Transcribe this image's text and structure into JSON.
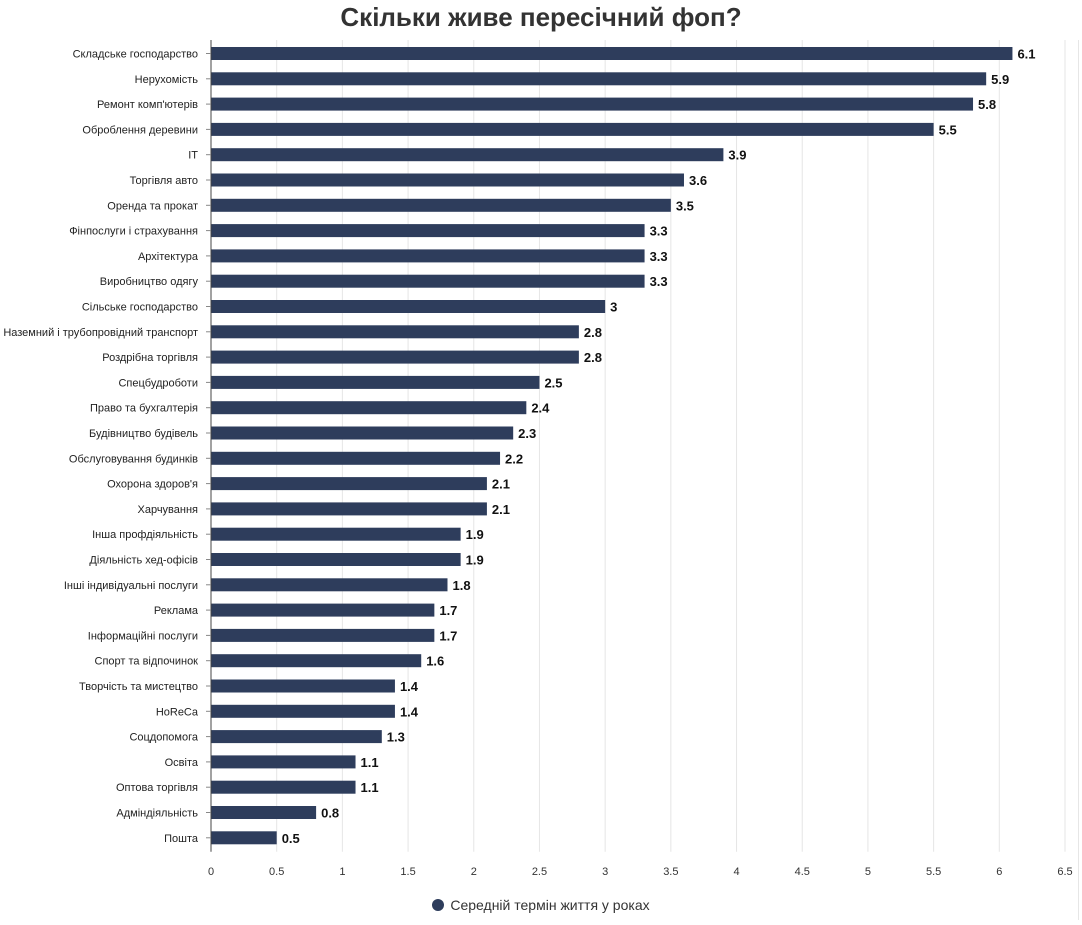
{
  "chart_data": {
    "type": "bar",
    "orientation": "horizontal",
    "title": "Скільки живе пересічний фоп?",
    "xlabel": "",
    "ylabel": "",
    "xlim": [
      0,
      6.5
    ],
    "grid": true,
    "legend_position": "bottom-center",
    "x_ticks": [
      "0",
      "0.5",
      "1",
      "1.5",
      "2",
      "2.5",
      "3",
      "3.5",
      "4",
      "4.5",
      "5",
      "5.5",
      "6",
      "6.5"
    ],
    "categories": [
      "Складське господарство",
      "Нерухомість",
      "Ремонт комп'ютерів",
      "Оброблення деревини",
      "IT",
      "Торгівля авто",
      "Оренда та прокат",
      "Фінпослуги і страхування",
      "Архітектура",
      "Виробництво одягу",
      "Сільське господарство",
      "Наземний і трубопровідний транспорт",
      "Роздрібна торгівля",
      "Спецбудроботи",
      "Право та бухгалтерія",
      "Будівництво будівель",
      "Обслуговування будинків",
      "Охорона здоров'я",
      "Харчування",
      "Інша профдіяльність",
      "Діяльність хед-офісів",
      "Інші індивідуальні послуги",
      "Реклама",
      "Інформаційні послуги",
      "Спорт та відпочинок",
      "Творчість та мистецтво",
      "HoReCa",
      "Соцдопомога",
      "Освіта",
      "Оптова торгівля",
      "Адміндіяльність",
      "Пошта"
    ],
    "series": [
      {
        "name": "Середній термін життя у роках",
        "color": "#2e3d5c",
        "values": [
          6.1,
          5.9,
          5.8,
          5.5,
          3.9,
          3.6,
          3.5,
          3.3,
          3.3,
          3.3,
          3,
          2.8,
          2.8,
          2.5,
          2.4,
          2.3,
          2.2,
          2.1,
          2.1,
          1.9,
          1.9,
          1.8,
          1.7,
          1.7,
          1.6,
          1.4,
          1.4,
          1.3,
          1.1,
          1.1,
          0.8,
          0.5
        ],
        "labels": [
          "6.1",
          "5.9",
          "5.8",
          "5.5",
          "3.9",
          "3.6",
          "3.5",
          "3.3",
          "3.3",
          "3.3",
          "3",
          "2.8",
          "2.8",
          "2.5",
          "2.4",
          "2.3",
          "2.2",
          "2.1",
          "2.1",
          "1.9",
          "1.9",
          "1.8",
          "1.7",
          "1.7",
          "1.6",
          "1.4",
          "1.4",
          "1.3",
          "1.1",
          "1.1",
          "0.8",
          "0.5"
        ]
      }
    ]
  }
}
